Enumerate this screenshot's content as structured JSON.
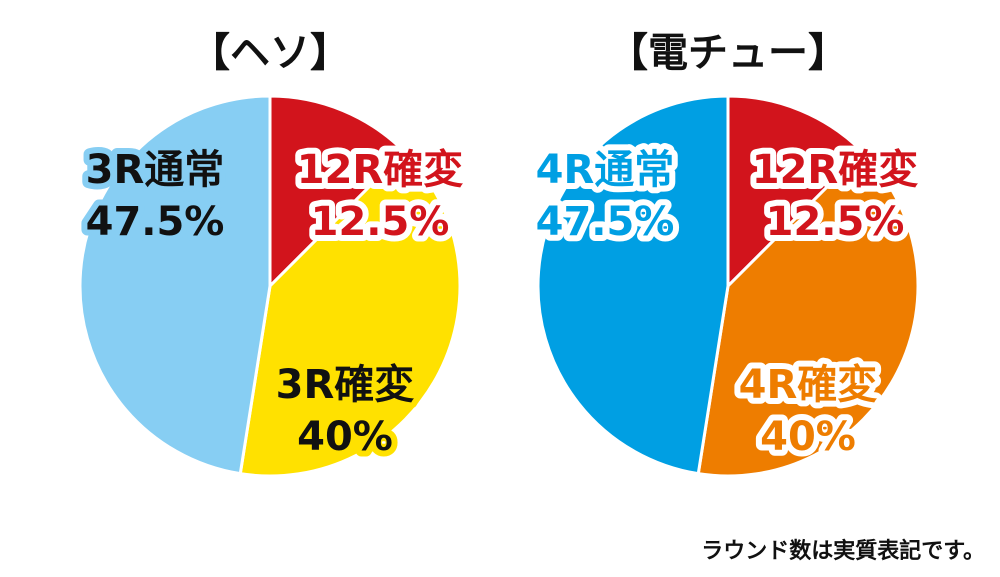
{
  "chart_data": [
    {
      "type": "pie",
      "title": "【ヘソ】",
      "slices": [
        {
          "label": "12R確変",
          "value": 12.5,
          "display": "12.5%",
          "color": "#d2141c",
          "text_color": "#d2141c",
          "outline_color": "#ffffff"
        },
        {
          "label": "3R確変",
          "value": 40,
          "display": "40%",
          "color": "#ffe100",
          "text_color": "#111111",
          "outline_color": "#ffe100"
        },
        {
          "label": "3R通常",
          "value": 47.5,
          "display": "47.5%",
          "color": "#87cef3",
          "text_color": "#111111",
          "outline_color": "#87cef3"
        }
      ]
    },
    {
      "type": "pie",
      "title": "【電チュー】",
      "slices": [
        {
          "label": "12R確変",
          "value": 12.5,
          "display": "12.5%",
          "color": "#d2141c",
          "text_color": "#d2141c",
          "outline_color": "#ffffff"
        },
        {
          "label": "4R確変",
          "value": 40,
          "display": "40%",
          "color": "#ee7d00",
          "text_color": "#ee7d00",
          "outline_color": "#ffffff"
        },
        {
          "label": "4R通常",
          "value": 47.5,
          "display": "47.5%",
          "color": "#009fe3",
          "text_color": "#009fe3",
          "outline_color": "#ffffff"
        }
      ]
    }
  ],
  "footnote": "ラウンド数は実質表記です。"
}
